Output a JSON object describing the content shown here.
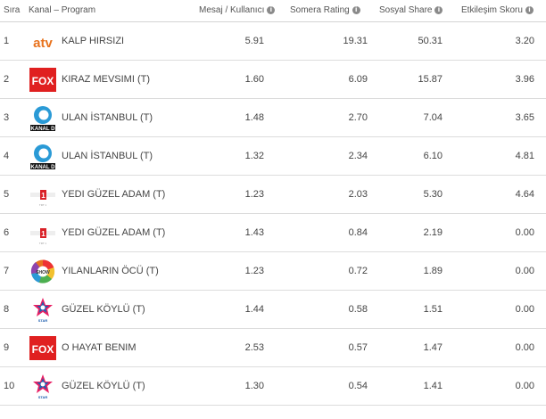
{
  "header": {
    "rank": "Sıra",
    "program": "Kanal – Program",
    "message": "Mesaj / Kullanıcı",
    "rating": "Somera Rating",
    "share": "Sosyal Share",
    "engagement": "Etkileşim Skoru",
    "info_glyph": "i"
  },
  "rows": [
    {
      "rank": "1",
      "channel_icon": "atv-logo",
      "program": "KALP HIRSIZI",
      "message": "5.91",
      "rating": "19.31",
      "share": "50.31",
      "engagement": "3.20"
    },
    {
      "rank": "2",
      "channel_icon": "fox-logo",
      "program": "KIRAZ MEVSIMI (T)",
      "message": "1.60",
      "rating": "6.09",
      "share": "15.87",
      "engagement": "3.96"
    },
    {
      "rank": "3",
      "channel_icon": "kanal-d-logo",
      "program": "ULAN İSTANBUL (T)",
      "message": "1.48",
      "rating": "2.70",
      "share": "7.04",
      "engagement": "3.65"
    },
    {
      "rank": "4",
      "channel_icon": "kanal-d-logo",
      "program": "ULAN İSTANBUL (T)",
      "message": "1.32",
      "rating": "2.34",
      "share": "6.10",
      "engagement": "4.81"
    },
    {
      "rank": "5",
      "channel_icon": "trt1-logo",
      "program": "YEDI GÜZEL ADAM (T)",
      "message": "1.23",
      "rating": "2.03",
      "share": "5.30",
      "engagement": "4.64"
    },
    {
      "rank": "6",
      "channel_icon": "trt1-logo",
      "program": "YEDI GÜZEL ADAM (T)",
      "message": "1.43",
      "rating": "0.84",
      "share": "2.19",
      "engagement": "0.00"
    },
    {
      "rank": "7",
      "channel_icon": "show-tv-logo",
      "program": "YILANLARIN ÖCÜ (T)",
      "message": "1.23",
      "rating": "0.72",
      "share": "1.89",
      "engagement": "0.00"
    },
    {
      "rank": "8",
      "channel_icon": "star-tv-logo",
      "program": "GÜZEL KÖYLÜ (T)",
      "message": "1.44",
      "rating": "0.58",
      "share": "1.51",
      "engagement": "0.00"
    },
    {
      "rank": "9",
      "channel_icon": "fox-logo",
      "program": "O HAYAT BENIM",
      "message": "2.53",
      "rating": "0.57",
      "share": "1.47",
      "engagement": "0.00"
    },
    {
      "rank": "10",
      "channel_icon": "star-tv-logo",
      "program": "GÜZEL KÖYLÜ (T)",
      "message": "1.30",
      "rating": "0.54",
      "share": "1.41",
      "engagement": "0.00"
    }
  ],
  "logos": {
    "atv": {
      "text": "atv",
      "color": "#e8731e"
    },
    "fox": {
      "text": "FOX",
      "color": "#e02020"
    },
    "kanal_d": {
      "text": "KANAL D",
      "color": "#2a9ad6"
    },
    "trt1": {
      "text": "TRT 1",
      "color": "#d92027"
    },
    "show": {
      "text": "SHOW",
      "color": "#e8731e"
    },
    "star": {
      "text": "STAR",
      "color": "#2060b0"
    }
  }
}
